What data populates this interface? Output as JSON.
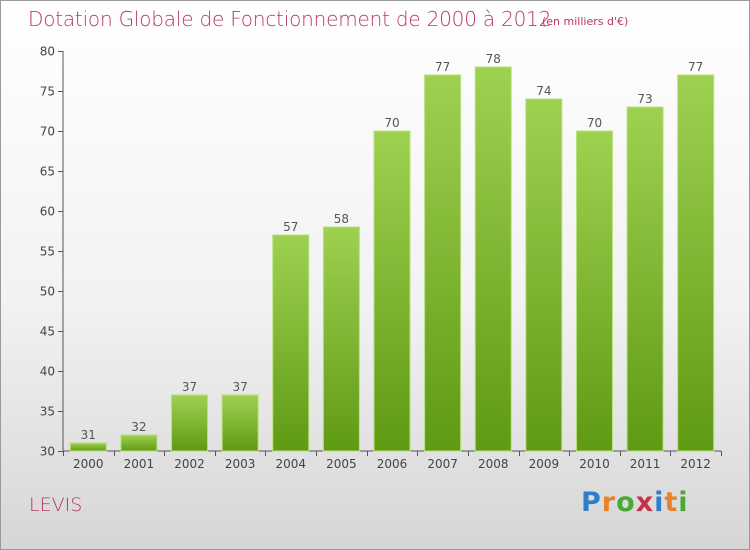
{
  "title": "Dotation Globale de Fonctionnement de 2000 à 2012",
  "unit_note": "(en milliers d'€)",
  "city": "LEVIS",
  "logo": {
    "letters": [
      "P",
      "r",
      "o",
      "x",
      "i",
      "t",
      "i"
    ],
    "colors": [
      "#2e7fc8",
      "#e8822a",
      "#4aa834",
      "#c8304a",
      "#2e7fc8",
      "#e8822a",
      "#4aa834"
    ]
  },
  "colors": {
    "accent": "#b8385c",
    "bar_top": "#9fd151",
    "bar_bottom": "#5f9a13",
    "axis": "#555555",
    "grid": "#c8c8c8"
  },
  "chart_data": {
    "type": "bar",
    "title": "Dotation Globale de Fonctionnement de 2000 à 2012",
    "subtitle": "(en milliers d'€)",
    "categories": [
      "2000",
      "2001",
      "2002",
      "2003",
      "2004",
      "2005",
      "2006",
      "2007",
      "2008",
      "2009",
      "2010",
      "2011",
      "2012"
    ],
    "values": [
      31,
      32,
      37,
      37,
      57,
      58,
      70,
      77,
      78,
      74,
      70,
      73,
      77
    ],
    "ylim": [
      30,
      80
    ],
    "yticks": [
      30,
      35,
      40,
      45,
      50,
      55,
      60,
      65,
      70,
      75,
      80
    ],
    "grid": false,
    "data_labels": true
  }
}
